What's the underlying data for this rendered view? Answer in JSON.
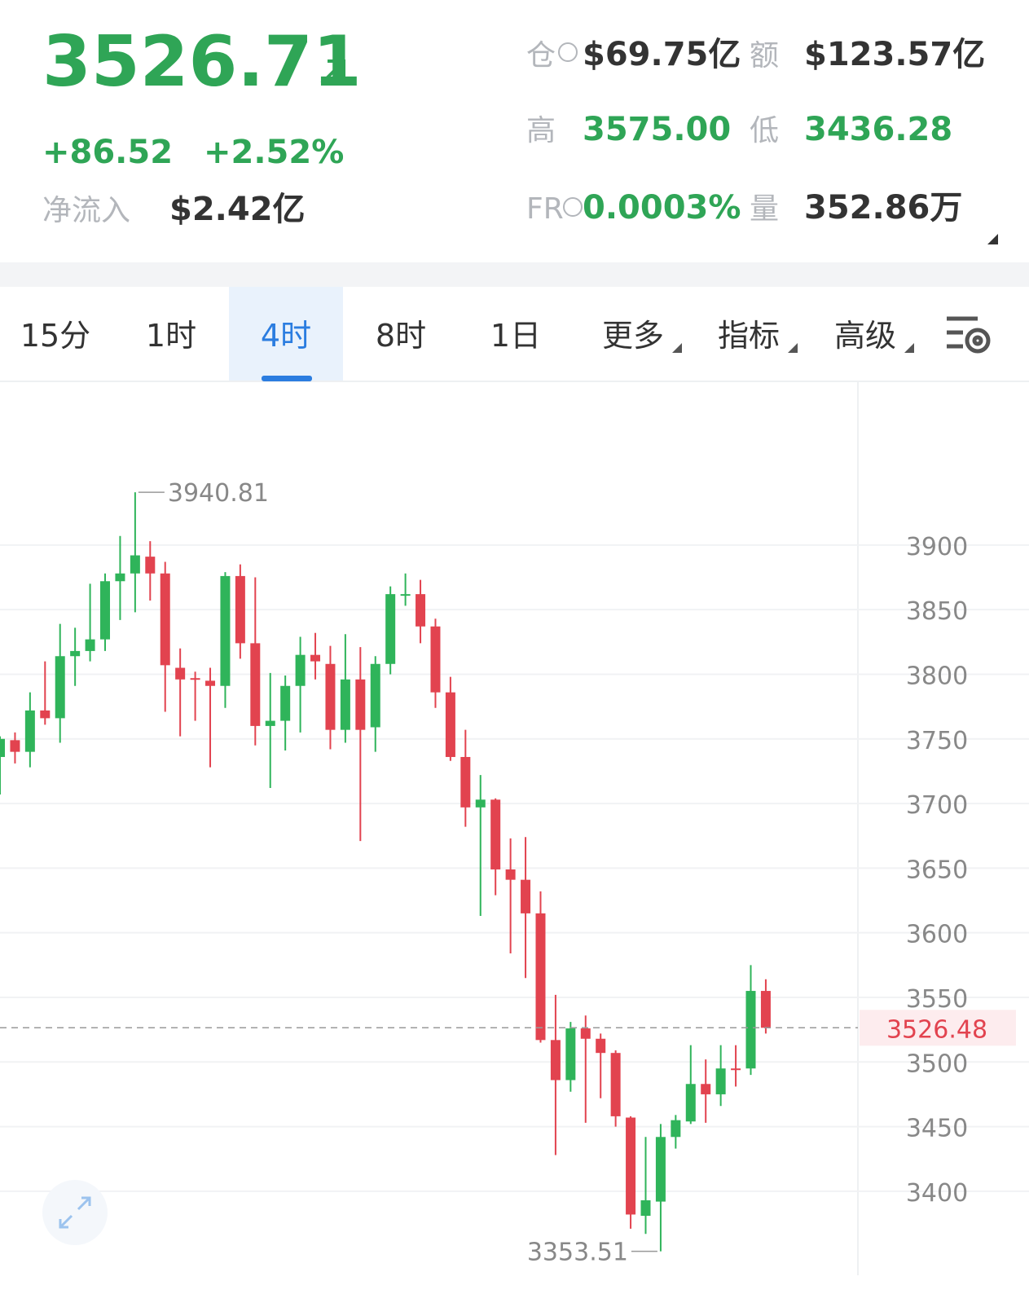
{
  "header": {
    "price": "3526.71",
    "change": "+86.52",
    "change_pct": "+2.52%",
    "net_inflow_label": "净流入",
    "net_inflow": "$2.42亿",
    "stats": [
      {
        "label": "仓",
        "value": "$69.75亿"
      },
      {
        "label": "额",
        "value": "$123.57亿"
      },
      {
        "label": "高",
        "value": "3575.00"
      },
      {
        "label": "低",
        "value": "3436.28"
      },
      {
        "label": "FR",
        "value": "0.0003%"
      },
      {
        "label": "量",
        "value": "352.86万"
      }
    ]
  },
  "tabs": {
    "items": [
      "15分",
      "1时",
      "4时",
      "8时",
      "1日",
      "更多",
      "指标",
      "高级"
    ],
    "active": 2
  },
  "chart_data": {
    "type": "candlestick",
    "up_color": "#2fb45a",
    "down_color": "#e2434f",
    "open": [
      3736,
      3749,
      3740,
      3772,
      3766,
      3814,
      3818,
      3827,
      3872,
      3878,
      3891,
      3878,
      3805,
      3797,
      3795,
      3791,
      3876,
      3824,
      3760,
      3764,
      3791,
      3815,
      3808,
      3757,
      3796,
      3759,
      3808,
      3861,
      3862,
      3837,
      3786,
      3736,
      3697,
      3703,
      3649,
      3641,
      3615,
      3517,
      3486,
      3526,
      3518,
      3507,
      3457,
      3381,
      3392,
      3442,
      3454,
      3483,
      3475,
      3495,
      3495,
      3555
    ],
    "high": [
      3752,
      3755,
      3786,
      3810,
      3839,
      3836,
      3870,
      3878,
      3907,
      3940.81,
      3903,
      3887,
      3820,
      3802,
      3805,
      3879,
      3885,
      3875,
      3801,
      3799,
      3829,
      3832,
      3822,
      3831,
      3821,
      3814,
      3868,
      3878,
      3873,
      3843,
      3798,
      3757,
      3722,
      3704,
      3673,
      3674,
      3632,
      3552,
      3531,
      3536,
      3522,
      3509,
      3458,
      3442,
      3452,
      3459,
      3513,
      3502,
      3513,
      3513,
      3575,
      3564
    ],
    "low": [
      3707,
      3731,
      3728,
      3761,
      3747,
      3791,
      3810,
      3818,
      3842,
      3848,
      3857,
      3771,
      3752,
      3764,
      3728,
      3774,
      3812,
      3745,
      3712,
      3741,
      3755,
      3796,
      3742,
      3747,
      3671,
      3740,
      3800,
      3853,
      3824,
      3774,
      3733,
      3682,
      3613,
      3629,
      3584,
      3565,
      3515,
      3428,
      3477,
      3453,
      3472,
      3450,
      3371,
      3367,
      3353.51,
      3433,
      3452,
      3453,
      3466,
      3481,
      3490,
      3522
    ],
    "close": [
      3750,
      3740,
      3772,
      3766,
      3814,
      3818,
      3827,
      3872,
      3878,
      3892,
      3878,
      3807,
      3796,
      3796,
      3791,
      3876,
      3824,
      3760,
      3764,
      3791,
      3815,
      3810,
      3757,
      3796,
      3757,
      3808,
      3862,
      3862,
      3837,
      3786,
      3736,
      3697,
      3703,
      3649,
      3641,
      3615,
      3517,
      3486,
      3526,
      3518,
      3507,
      3458,
      3382,
      3393,
      3442,
      3455,
      3483,
      3475,
      3495,
      3494,
      3555,
      3526.48
    ],
    "ylim": [
      3335,
      4026
    ],
    "yticks": [
      3400,
      3450,
      3500,
      3550,
      3600,
      3650,
      3700,
      3750,
      3800,
      3850,
      3900
    ],
    "grid": true,
    "max_label": 3940.81,
    "min_label": 3353.51,
    "last_price": 3526.48
  }
}
